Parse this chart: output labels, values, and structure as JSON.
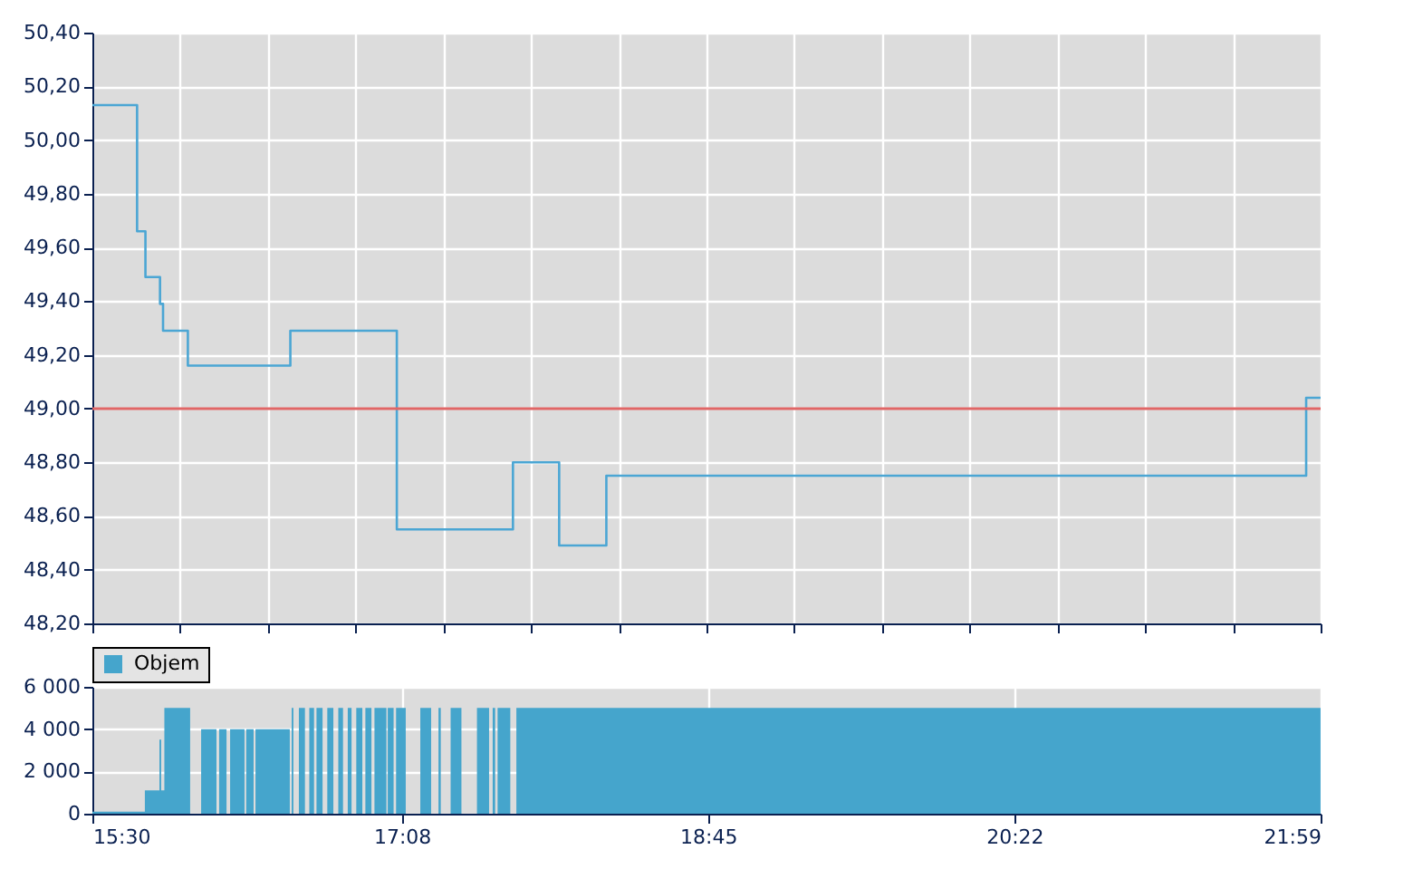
{
  "chart_data": [
    {
      "type": "step",
      "xlim": [
        15.5,
        21.9833
      ],
      "xticks": [
        {
          "value": 15.5,
          "label": null
        },
        {
          "value": 15.9631,
          "label": null
        },
        {
          "value": 16.4262,
          "label": null
        },
        {
          "value": 16.8893,
          "label": null
        },
        {
          "value": 17.3524,
          "label": null
        },
        {
          "value": 17.8155,
          "label": null
        },
        {
          "value": 18.2786,
          "label": null
        },
        {
          "value": 18.7417,
          "label": null
        },
        {
          "value": 19.2048,
          "label": null
        },
        {
          "value": 19.6679,
          "label": null
        },
        {
          "value": 20.131,
          "label": null
        },
        {
          "value": 20.5941,
          "label": null
        },
        {
          "value": 21.0571,
          "label": null
        },
        {
          "value": 21.5202,
          "label": null
        },
        {
          "value": 21.9833,
          "label": null
        }
      ],
      "ylim": [
        48.2,
        50.4
      ],
      "yticks": [
        {
          "value": 48.2,
          "label": "48,20"
        },
        {
          "value": 48.4,
          "label": "48,40"
        },
        {
          "value": 48.6,
          "label": "48,60"
        },
        {
          "value": 48.8,
          "label": "48,80"
        },
        {
          "value": 49.0,
          "label": "49,00"
        },
        {
          "value": 49.2,
          "label": "49,20"
        },
        {
          "value": 49.4,
          "label": "49,40"
        },
        {
          "value": 49.6,
          "label": "49,60"
        },
        {
          "value": 49.8,
          "label": "49,80"
        },
        {
          "value": 50.0,
          "label": "50,00"
        },
        {
          "value": 50.2,
          "label": "50,20"
        },
        {
          "value": 50.4,
          "label": "50,40"
        }
      ],
      "tick_labels": "y",
      "grid": true,
      "legend": false,
      "ref_lines": [
        {
          "axis": "y",
          "value": 49.0,
          "color": "#e06666"
        }
      ],
      "series": [
        {
          "color": "#4ba6d4",
          "x": [
            15.5,
            15.736,
            15.78,
            15.857,
            15.873,
            16.004,
            16.545,
            17.107,
            17.72,
            17.964,
            18.213,
            21.907,
            21.983
          ],
          "values": [
            50.13,
            49.66,
            49.49,
            49.39,
            49.29,
            49.16,
            49.29,
            48.55,
            48.8,
            48.49,
            48.75,
            49.04,
            49.04
          ]
        }
      ]
    },
    {
      "type": "area",
      "xlim": [
        15.5,
        21.9833
      ],
      "xticks": [
        {
          "value": 15.5,
          "label": "15:30"
        },
        {
          "value": 17.1333,
          "label": "17:08"
        },
        {
          "value": 18.75,
          "label": "18:45"
        },
        {
          "value": 20.3667,
          "label": "20:22"
        },
        {
          "value": 21.9833,
          "label": "21:59"
        }
      ],
      "ylim": [
        0,
        6000
      ],
      "yticks": [
        0,
        {
          "value": 2000,
          "label": "2 000"
        },
        {
          "value": 4000,
          "label": "4 000"
        },
        {
          "value": 6000,
          "label": "6 000"
        }
      ],
      "grid": true,
      "legend": "top",
      "series": [
        {
          "name": "Objem",
          "color": "#45a5cc",
          "x": [
            15.5,
            15.777,
            15.854,
            15.863,
            15.88,
            16.016,
            16.074,
            16.155,
            16.169,
            16.208,
            16.227,
            16.303,
            16.312,
            16.351,
            16.361,
            16.542,
            16.552,
            16.561,
            16.59,
            16.622,
            16.645,
            16.67,
            16.683,
            16.715,
            16.74,
            16.772,
            16.798,
            16.823,
            16.848,
            16.868,
            16.893,
            16.925,
            16.941,
            16.973,
            16.989,
            17.052,
            17.059,
            17.09,
            17.103,
            17.154,
            17.231,
            17.288,
            17.327,
            17.339,
            17.391,
            17.448,
            17.53,
            17.594,
            17.613,
            17.626,
            17.639,
            17.706,
            17.738,
            21.983
          ],
          "values": [
            100,
            1100,
            3500,
            1100,
            5000,
            0,
            4000,
            0,
            4000,
            0,
            4000,
            0,
            4000,
            0,
            4000,
            0,
            5000,
            0,
            5000,
            0,
            5000,
            0,
            5000,
            0,
            5000,
            0,
            5000,
            0,
            5000,
            0,
            5000,
            0,
            5000,
            0,
            5000,
            0,
            5000,
            0,
            5000,
            0,
            5000,
            0,
            5000,
            0,
            5000,
            0,
            5000,
            0,
            5000,
            0,
            5000,
            0,
            5000,
            5000
          ]
        }
      ]
    }
  ]
}
